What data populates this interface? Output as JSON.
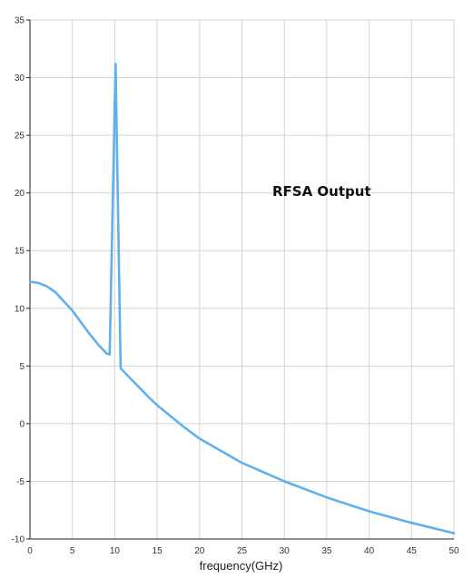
{
  "chart_data": {
    "type": "line",
    "title": "",
    "annotation": "RFSA Output",
    "xlabel": "frequency(GHz)",
    "ylabel": "",
    "xlim": [
      0,
      50
    ],
    "ylim": [
      -10,
      35
    ],
    "x_ticks": [
      0,
      5,
      10,
      15,
      20,
      25,
      30,
      35,
      40,
      45,
      50
    ],
    "y_ticks": [
      -10,
      -5,
      0,
      5,
      10,
      15,
      20,
      25,
      30,
      35
    ],
    "grid": true,
    "legend": "none",
    "colors": {
      "line": "#5eb1ec",
      "grid": "#d4d4d4",
      "axis": "#222222"
    },
    "series": [
      {
        "x": [
          0,
          1,
          2,
          3,
          4,
          5,
          6,
          7,
          8,
          9,
          9.4,
          10.1,
          10.7,
          12,
          14,
          15,
          18,
          20,
          25,
          30,
          35,
          40,
          45,
          50
        ],
        "y": [
          12.3,
          12.2,
          11.9,
          11.4,
          10.6,
          9.8,
          8.8,
          7.8,
          6.9,
          6.1,
          6.0,
          31.2,
          4.8,
          3.8,
          2.3,
          1.6,
          -0.2,
          -1.3,
          -3.4,
          -5.0,
          -6.4,
          -7.6,
          -8.6,
          -9.5
        ]
      }
    ]
  }
}
